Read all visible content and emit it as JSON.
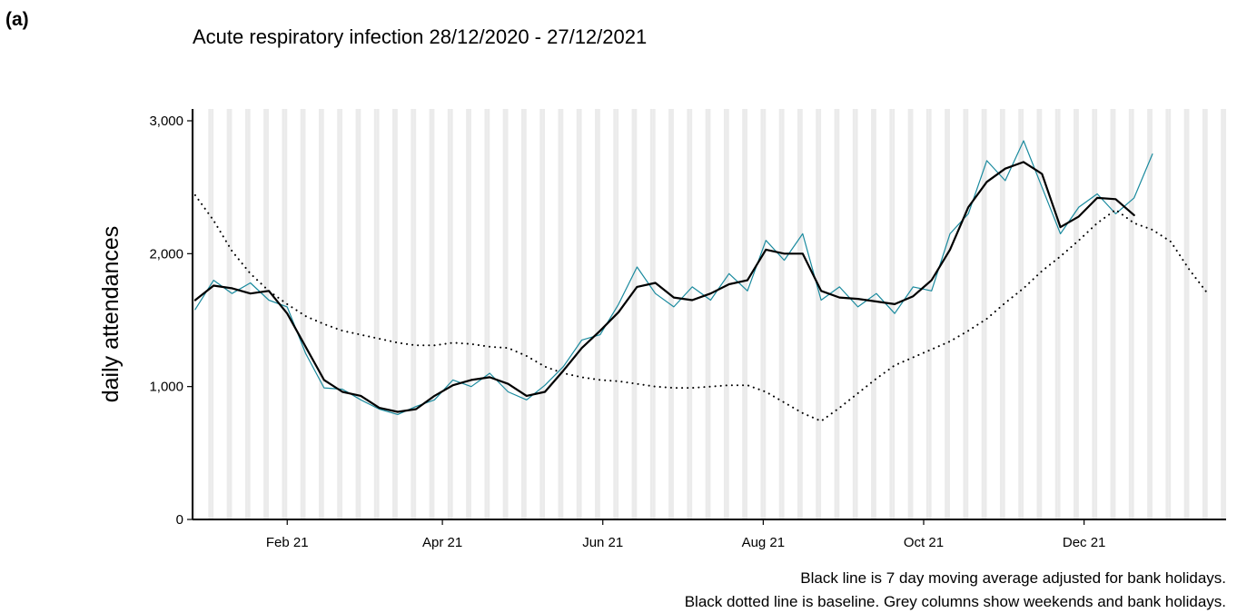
{
  "chart_data": {
    "type": "line",
    "panel_label": "(a)",
    "title": "Acute respiratory infection 28/12/2020 - 27/12/2021",
    "y_label": "daily attendances",
    "notes": [
      "Black line is 7 day moving average adjusted for bank holidays.",
      "Black dotted line is baseline. Grey columns show weekends and bank holidays."
    ],
    "x": [
      "2020-12-28",
      "2021-01-04",
      "2021-01-11",
      "2021-01-18",
      "2021-01-25",
      "2021-02-01",
      "2021-02-08",
      "2021-02-15",
      "2021-02-22",
      "2021-03-01",
      "2021-03-08",
      "2021-03-15",
      "2021-03-22",
      "2021-03-29",
      "2021-04-05",
      "2021-04-12",
      "2021-04-19",
      "2021-04-26",
      "2021-05-03",
      "2021-05-10",
      "2021-05-17",
      "2021-05-24",
      "2021-05-31",
      "2021-06-07",
      "2021-06-14",
      "2021-06-21",
      "2021-06-28",
      "2021-07-05",
      "2021-07-12",
      "2021-07-19",
      "2021-07-26",
      "2021-08-02",
      "2021-08-09",
      "2021-08-16",
      "2021-08-23",
      "2021-08-30",
      "2021-09-06",
      "2021-09-13",
      "2021-09-20",
      "2021-09-27",
      "2021-10-04",
      "2021-10-11",
      "2021-10-18",
      "2021-10-25",
      "2021-11-01",
      "2021-11-08",
      "2021-11-15",
      "2021-11-22",
      "2021-11-29",
      "2021-12-06",
      "2021-12-13",
      "2021-12-20",
      "2021-12-27",
      "2022-01-03",
      "2022-01-10",
      "2022-01-17"
    ],
    "series": [
      {
        "color": "#1a8a9e",
        "width": 1.2,
        "style": "solid",
        "values": [
          1580,
          1800,
          1700,
          1780,
          1650,
          1600,
          1250,
          990,
          980,
          900,
          830,
          790,
          850,
          900,
          1050,
          1000,
          1100,
          960,
          900,
          1010,
          1150,
          1350,
          1390,
          1620,
          1900,
          1700,
          1600,
          1750,
          1650,
          1850,
          1720,
          2100,
          1950,
          2150,
          1650,
          1750,
          1600,
          1700,
          1550,
          1750,
          1720,
          2150,
          2300,
          2700,
          2550,
          2850,
          2500,
          2150,
          2350,
          2450,
          2300,
          2420,
          2750,
          null,
          null,
          null
        ]
      },
      {
        "color": "#000000",
        "width": 2.2,
        "style": "solid",
        "values": [
          1650,
          1760,
          1740,
          1700,
          1720,
          1550,
          1300,
          1050,
          960,
          930,
          840,
          810,
          830,
          930,
          1010,
          1050,
          1070,
          1020,
          930,
          960,
          1120,
          1290,
          1420,
          1560,
          1750,
          1780,
          1670,
          1650,
          1700,
          1770,
          1800,
          2030,
          2000,
          2000,
          1720,
          1670,
          1660,
          1640,
          1620,
          1680,
          1800,
          2030,
          2350,
          2540,
          2640,
          2690,
          2600,
          2200,
          2280,
          2420,
          2410,
          2290,
          null,
          null,
          null,
          null
        ]
      },
      {
        "color": "#000000",
        "width": 2,
        "style": "dotted",
        "values": [
          2440,
          2250,
          2020,
          1850,
          1720,
          1620,
          1530,
          1470,
          1420,
          1390,
          1360,
          1330,
          1310,
          1310,
          1330,
          1320,
          1300,
          1290,
          1230,
          1150,
          1100,
          1070,
          1050,
          1040,
          1020,
          1000,
          990,
          990,
          1000,
          1010,
          1010,
          960,
          880,
          800,
          740,
          840,
          950,
          1060,
          1160,
          1220,
          1280,
          1340,
          1420,
          1510,
          1630,
          1740,
          1870,
          1980,
          2100,
          2230,
          2330,
          2230,
          2180,
          2090,
          1880,
          1700
        ]
      }
    ],
    "xlim": [
      "2020-12-27",
      "2022-01-24"
    ],
    "xticks": [
      {
        "value": "2021-02-01",
        "label": "Feb 21"
      },
      {
        "value": "2021-04-01",
        "label": "Apr 21"
      },
      {
        "value": "2021-06-01",
        "label": "Jun 21"
      },
      {
        "value": "2021-08-01",
        "label": "Aug 21"
      },
      {
        "value": "2021-10-01",
        "label": "Oct 21"
      },
      {
        "value": "2021-12-01",
        "label": "Dec 21"
      }
    ],
    "ylim": [
      0,
      3000
    ],
    "yticks": [
      0,
      {
        "value": 1000,
        "label": "1,000"
      },
      {
        "value": 2000,
        "label": "2,000"
      },
      {
        "value": 3000,
        "label": "3,000"
      }
    ],
    "weekend_shading": true,
    "shade_color": "#ebebeb"
  }
}
